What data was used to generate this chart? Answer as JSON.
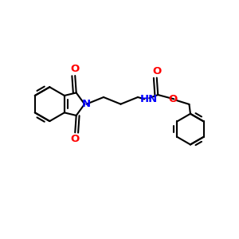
{
  "bg_color": "#ffffff",
  "bond_color": "#000000",
  "N_color": "#0000ff",
  "O_color": "#ff0000",
  "line_width": 1.5,
  "font_size": 8.5,
  "fig_width": 3.0,
  "fig_height": 3.0,
  "dpi": 100,
  "xlim": [
    0,
    10
  ],
  "ylim": [
    0,
    10
  ]
}
